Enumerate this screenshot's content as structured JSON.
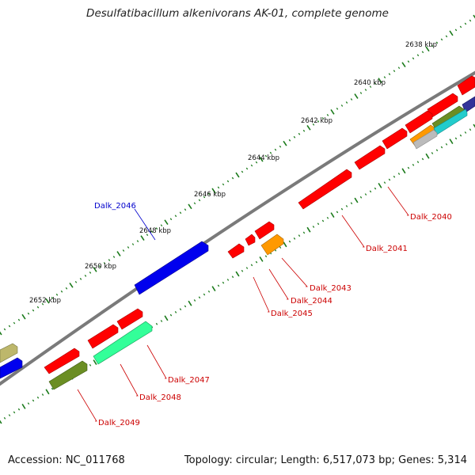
{
  "title": "Desulfatibacillum alkenivorans AK-01, complete genome",
  "footer": {
    "accession": "Accession: NC_011768",
    "summary": "Topology: circular; Length: 6,517,073 bp; Genes: 5,314"
  },
  "scale_labels": [
    "2638 kbp",
    "2640 kbp",
    "2642 kbp",
    "2644 kbp",
    "2646 kbp",
    "2648 kbp",
    "2650 kbp",
    "2652 kbp"
  ],
  "gene_labels": {
    "top": [
      "Dalk_2046"
    ],
    "bottom": [
      "Dalk_2040",
      "Dalk_2041",
      "Dalk_2043",
      "Dalk_2044",
      "Dalk_2045",
      "Dalk_2047",
      "Dalk_2048",
      "Dalk_2049"
    ]
  },
  "colors": {
    "backbone": "#7a7a7a",
    "tick": "#1a7a1a",
    "red": "#ff0000",
    "blue": "#0000ee",
    "orange": "#ff9900",
    "olive": "#6b8e23",
    "mint": "#33ff99",
    "khaki": "#bdb76b",
    "cyan": "#22cccc",
    "gray": "#bbbbbb",
    "navy": "#333399"
  }
}
